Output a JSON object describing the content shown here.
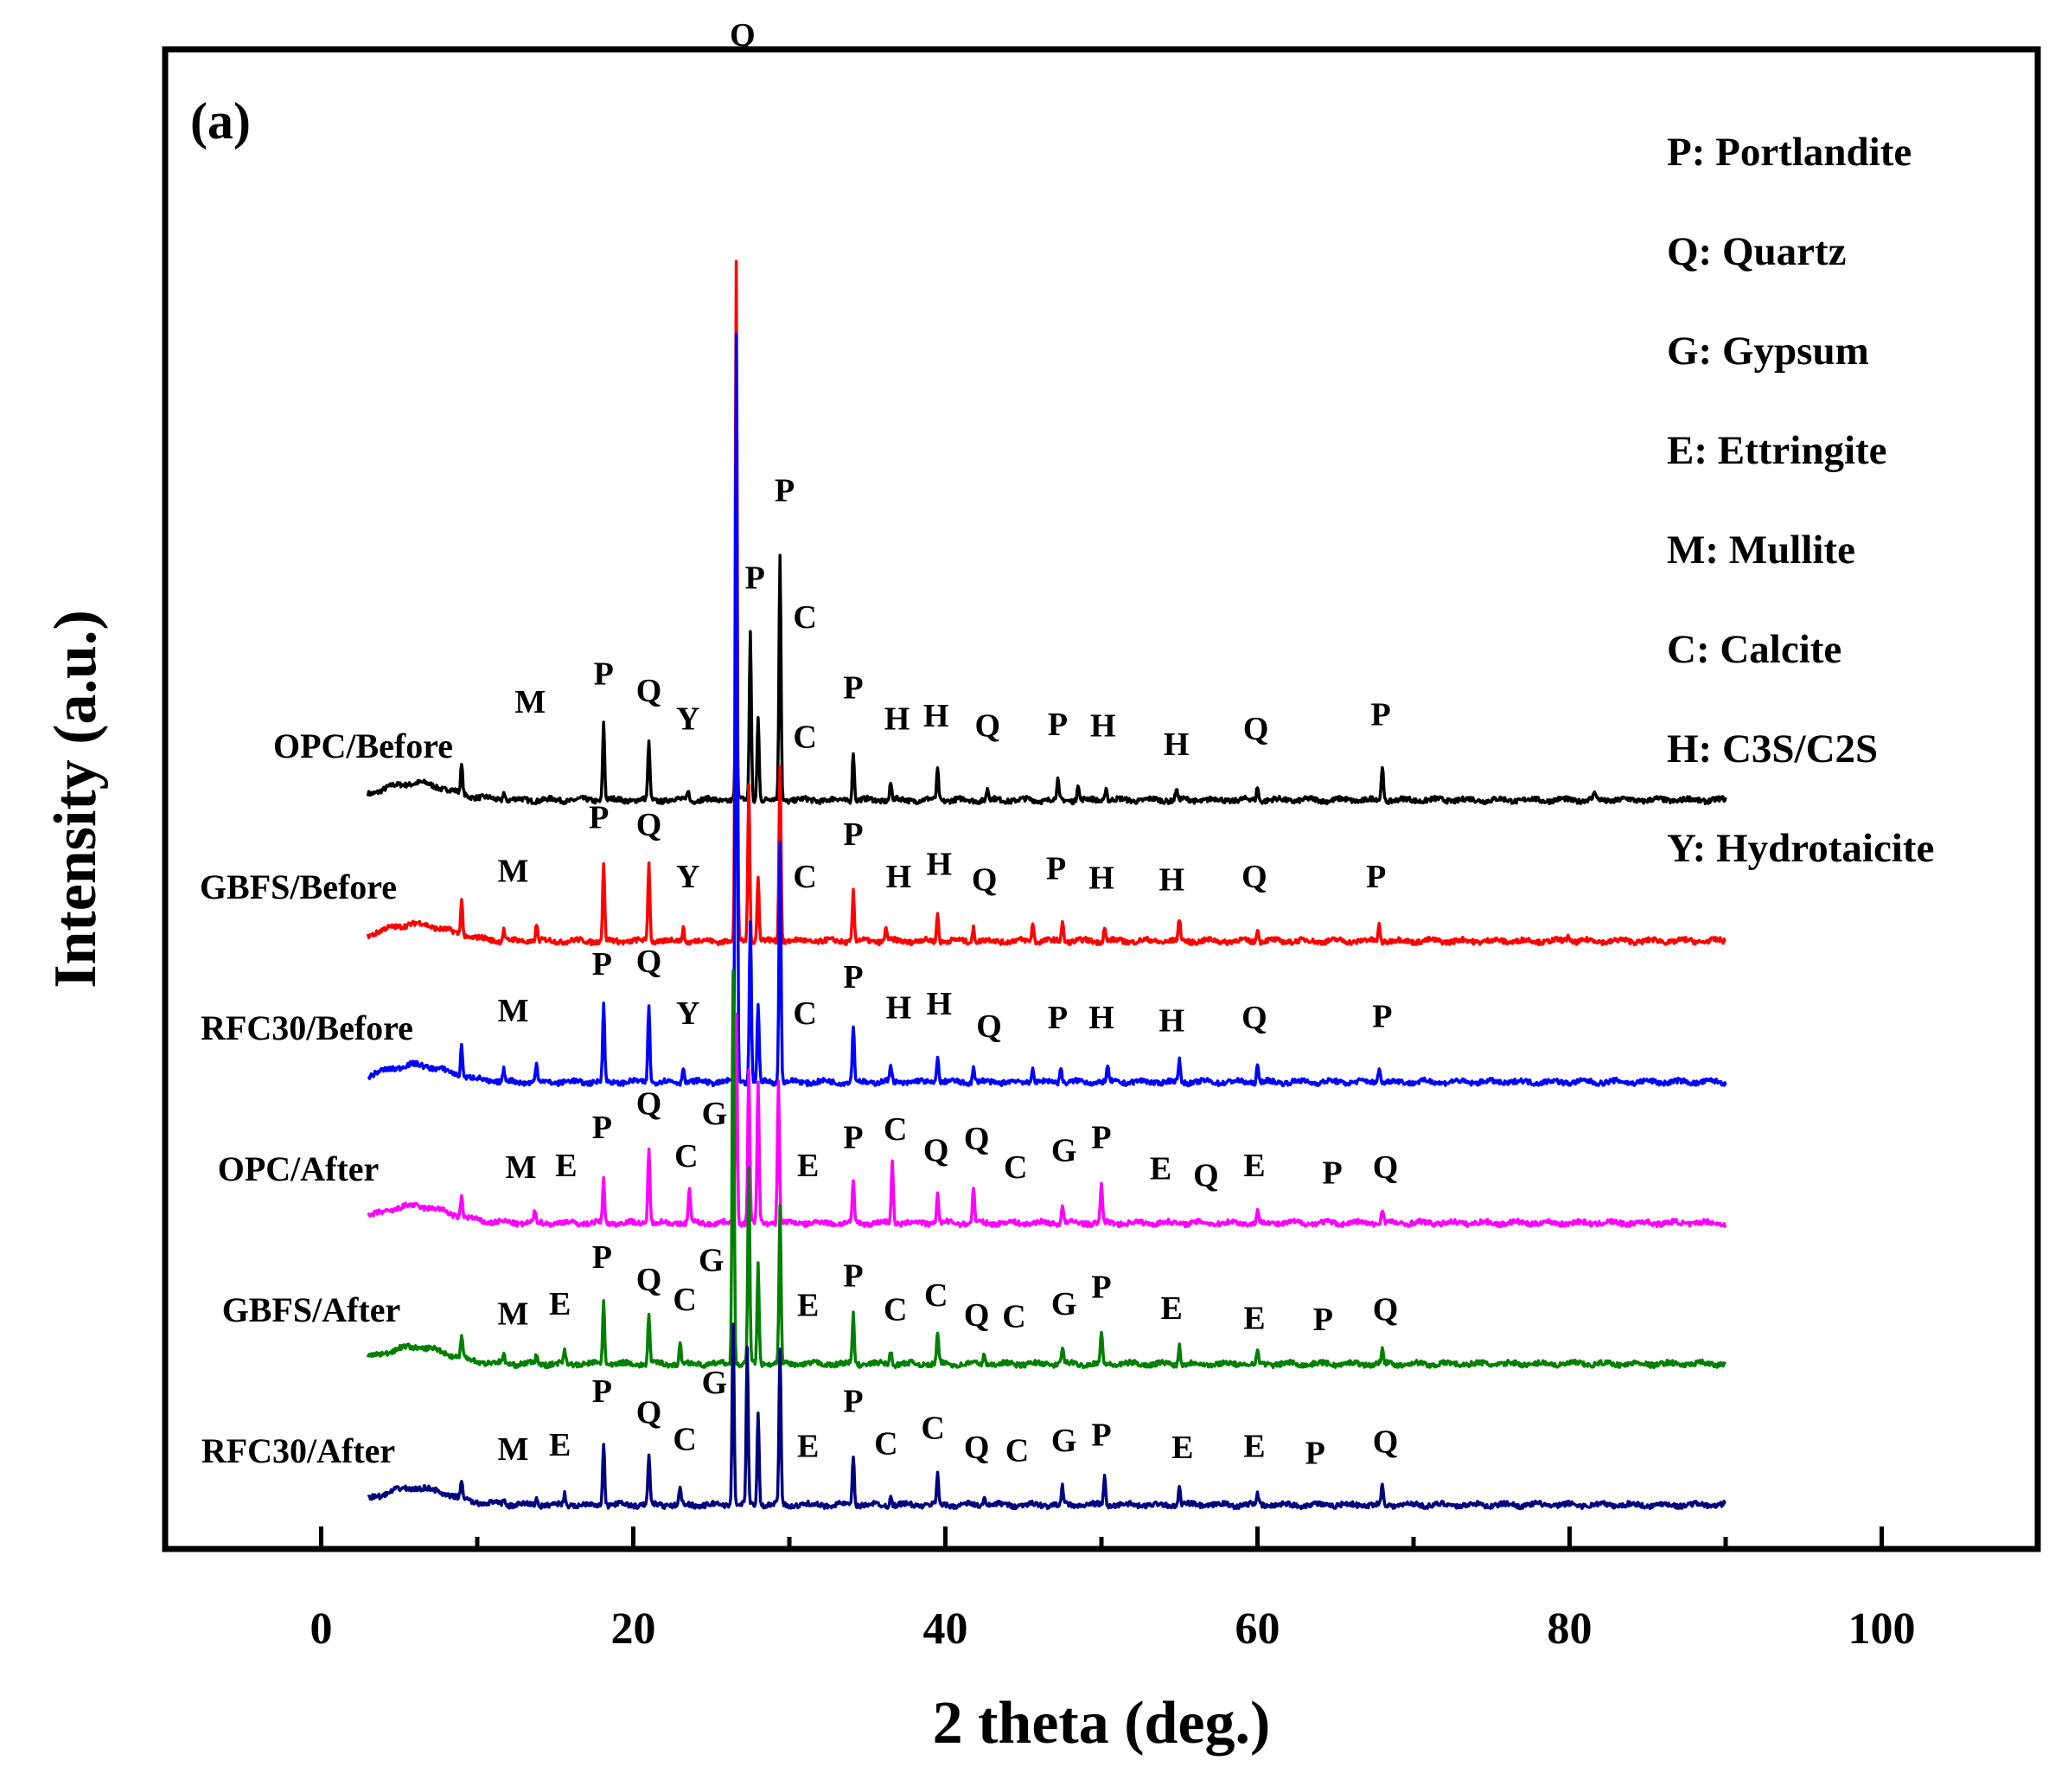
{
  "chart_data": {
    "type": "line",
    "panel_label": "(a)",
    "xlabel": "2 theta (deg.)",
    "ylabel": "Intensity (a.u.)",
    "xlim": [
      -10,
      110
    ],
    "x_ticks": [
      "0",
      "20",
      "40",
      "60",
      "80",
      "100"
    ],
    "y_ticks": [],
    "grid": false,
    "legend_position": "top-right",
    "legend": [
      "P: Portlandite",
      "Q: Quartz",
      "G: Gypsum",
      "E: Ettringite",
      "M: Mullite",
      "C: Calcite",
      "H: C3S/C2S",
      "Y: Hydrotaicite"
    ],
    "series": [
      {
        "name": "OPC/Before",
        "color": "#000000",
        "offset": 5.0,
        "peaks": [
          [
            9,
            0.2
          ],
          [
            11.7,
            0.06
          ],
          [
            18.1,
            0.55
          ],
          [
            21,
            0.4
          ],
          [
            23.5,
            0.08
          ],
          [
            26.6,
            0.9
          ],
          [
            27.5,
            1.2
          ],
          [
            28,
            0.6
          ],
          [
            29.4,
            1.75
          ],
          [
            34.1,
            0.35
          ],
          [
            36.5,
            0.12
          ],
          [
            39.5,
            0.22
          ],
          [
            42.7,
            0.08
          ],
          [
            47.2,
            0.14
          ],
          [
            48.5,
            0.12
          ],
          [
            50.3,
            0.1
          ],
          [
            54.8,
            0.08
          ],
          [
            60,
            0.1
          ],
          [
            68,
            0.25
          ],
          [
            81.6,
            0.06
          ]
        ],
        "labels": [
          [
            "M",
            13.4,
            0.62
          ],
          [
            "P",
            18.1,
            0.82
          ],
          [
            "Q",
            21.0,
            0.7
          ],
          [
            "Y",
            23.5,
            0.5
          ],
          [
            "Q",
            27.0,
            5.35
          ],
          [
            "P",
            29.7,
            2.12
          ],
          [
            "P",
            27.8,
            1.5
          ],
          [
            "C",
            31.0,
            1.22
          ],
          [
            "C",
            31.0,
            0.37
          ],
          [
            "P",
            34.1,
            0.72
          ],
          [
            "H",
            36.9,
            0.5
          ],
          [
            "H",
            39.4,
            0.52
          ],
          [
            "Q",
            42.7,
            0.45
          ],
          [
            "P",
            47.2,
            0.46
          ],
          [
            "H",
            50.1,
            0.45
          ],
          [
            "H",
            54.8,
            0.32
          ],
          [
            "Q",
            59.9,
            0.43
          ],
          [
            "P",
            67.9,
            0.53
          ]
        ]
      },
      {
        "name": "GBFS/Before",
        "color": "#ff0000",
        "offset": 4.0,
        "peaks": [
          [
            9,
            0.25
          ],
          [
            11.7,
            0.08
          ],
          [
            13.8,
            0.12
          ],
          [
            18.1,
            0.55
          ],
          [
            21,
            0.55
          ],
          [
            23.2,
            0.1
          ],
          [
            26.6,
            4.8
          ],
          [
            27.4,
            1.1
          ],
          [
            28,
            0.45
          ],
          [
            29.4,
            1.25
          ],
          [
            34.1,
            0.35
          ],
          [
            36.2,
            0.1
          ],
          [
            39.5,
            0.2
          ],
          [
            41.8,
            0.1
          ],
          [
            45.6,
            0.14
          ],
          [
            47.5,
            0.14
          ],
          [
            50.2,
            0.1
          ],
          [
            55,
            0.15
          ],
          [
            60,
            0.1
          ],
          [
            67.8,
            0.12
          ],
          [
            79.9,
            0.05
          ]
        ],
        "labels": [
          [
            "M",
            12.3,
            0.42
          ],
          [
            "P",
            17.8,
            0.8
          ],
          [
            "Q",
            21.0,
            0.75
          ],
          [
            "Y",
            23.5,
            0.38
          ],
          [
            "C",
            31.0,
            0.38
          ],
          [
            "P",
            34.1,
            0.68
          ],
          [
            "H",
            37.0,
            0.38
          ],
          [
            "H",
            39.6,
            0.47
          ],
          [
            "Q",
            42.5,
            0.36
          ],
          [
            "P",
            47.1,
            0.44
          ],
          [
            "H",
            50.0,
            0.37
          ],
          [
            "H",
            54.5,
            0.36
          ],
          [
            "Q",
            59.8,
            0.38
          ],
          [
            "P",
            67.6,
            0.38
          ]
        ]
      },
      {
        "name": "RFC30/Before",
        "color": "#0000ff",
        "offset": 3.0,
        "peaks": [
          [
            9,
            0.22
          ],
          [
            11.7,
            0.08
          ],
          [
            13.8,
            0.12
          ],
          [
            18.1,
            0.55
          ],
          [
            21,
            0.55
          ],
          [
            23.2,
            0.12
          ],
          [
            26.6,
            5.3
          ],
          [
            27.5,
            1.15
          ],
          [
            28,
            0.55
          ],
          [
            29.4,
            1.7
          ],
          [
            34.1,
            0.4
          ],
          [
            36.5,
            0.12
          ],
          [
            39.5,
            0.2
          ],
          [
            41.8,
            0.1
          ],
          [
            45.6,
            0.12
          ],
          [
            47.4,
            0.12
          ],
          [
            50.4,
            0.1
          ],
          [
            55,
            0.15
          ],
          [
            60,
            0.12
          ],
          [
            67.8,
            0.12
          ]
        ],
        "labels": [
          [
            "M",
            12.3,
            0.43
          ],
          [
            "P",
            18.0,
            0.76
          ],
          [
            "Q",
            21.0,
            0.78
          ],
          [
            "Y",
            23.5,
            0.41
          ],
          [
            "C",
            31.0,
            0.41
          ],
          [
            "P",
            34.1,
            0.67
          ],
          [
            "H",
            37.0,
            0.45
          ],
          [
            "H",
            39.6,
            0.48
          ],
          [
            "Q",
            42.8,
            0.32
          ],
          [
            "P",
            47.2,
            0.38
          ],
          [
            "H",
            50.0,
            0.38
          ],
          [
            "H",
            54.5,
            0.36
          ],
          [
            "Q",
            59.8,
            0.38
          ],
          [
            "P",
            68.0,
            0.39
          ]
        ]
      },
      {
        "name": "OPC/After",
        "color": "#ff00ff",
        "offset": 2.0,
        "peaks": [
          [
            9,
            0.15
          ],
          [
            13.7,
            0.08
          ],
          [
            18.1,
            0.3
          ],
          [
            21,
            0.55
          ],
          [
            23.6,
            0.25
          ],
          [
            26.6,
            1.5
          ],
          [
            27.4,
            1.1
          ],
          [
            28,
            1.0
          ],
          [
            29.3,
            1.0
          ],
          [
            34.1,
            0.28
          ],
          [
            36.6,
            0.45
          ],
          [
            39.5,
            0.22
          ],
          [
            41.8,
            0.25
          ],
          [
            47.5,
            0.14
          ],
          [
            50,
            0.28
          ],
          [
            60,
            0.08
          ],
          [
            68,
            0.1
          ]
        ],
        "labels": [
          [
            "M",
            12.8,
            0.32
          ],
          [
            "E",
            15.7,
            0.33
          ],
          [
            "P",
            18.0,
            0.6
          ],
          [
            "Q",
            21.0,
            0.77
          ],
          [
            "C",
            23.4,
            0.4
          ],
          [
            "G",
            25.2,
            0.7
          ],
          [
            "E",
            31.2,
            0.33
          ],
          [
            "P",
            34.1,
            0.53
          ],
          [
            "C",
            36.8,
            0.59
          ],
          [
            "Q",
            39.4,
            0.44
          ],
          [
            "Q",
            42.0,
            0.52
          ],
          [
            "C",
            44.5,
            0.32
          ],
          [
            "G",
            47.6,
            0.44
          ],
          [
            "P",
            50.0,
            0.53
          ],
          [
            "E",
            53.8,
            0.31
          ],
          [
            "Q",
            56.7,
            0.26
          ],
          [
            "E",
            59.8,
            0.33
          ],
          [
            "P",
            64.8,
            0.28
          ],
          [
            "Q",
            68.2,
            0.32
          ]
        ]
      },
      {
        "name": "GBFS/After",
        "color": "#008000",
        "offset": 1.0,
        "peaks": [
          [
            9,
            0.15
          ],
          [
            11.7,
            0.06
          ],
          [
            13.8,
            0.06
          ],
          [
            15.6,
            0.1
          ],
          [
            18.1,
            0.45
          ],
          [
            21,
            0.35
          ],
          [
            23,
            0.14
          ],
          [
            26.4,
            2.8
          ],
          [
            27.4,
            1.4
          ],
          [
            28,
            0.7
          ],
          [
            29.4,
            1.1
          ],
          [
            34.1,
            0.35
          ],
          [
            36.5,
            0.1
          ],
          [
            39.5,
            0.22
          ],
          [
            42.5,
            0.08
          ],
          [
            47.5,
            0.12
          ],
          [
            50,
            0.22
          ],
          [
            55,
            0.14
          ],
          [
            60,
            0.08
          ],
          [
            68,
            0.12
          ]
        ],
        "labels": [
          [
            "M",
            12.3,
            0.28
          ],
          [
            "E",
            15.3,
            0.35
          ],
          [
            "P",
            18.0,
            0.68
          ],
          [
            "Q",
            21.0,
            0.52
          ],
          [
            "C",
            23.3,
            0.38
          ],
          [
            "G",
            25.0,
            0.66
          ],
          [
            "E",
            31.2,
            0.34
          ],
          [
            "P",
            34.1,
            0.55
          ],
          [
            "C",
            36.8,
            0.31
          ],
          [
            "C",
            39.4,
            0.41
          ],
          [
            "Q",
            42.0,
            0.27
          ],
          [
            "C",
            44.4,
            0.26
          ],
          [
            "G",
            47.6,
            0.35
          ],
          [
            "P",
            50.0,
            0.47
          ],
          [
            "E",
            54.5,
            0.32
          ],
          [
            "E",
            59.8,
            0.25
          ],
          [
            "P",
            64.2,
            0.24
          ],
          [
            "Q",
            68.2,
            0.31
          ]
        ]
      },
      {
        "name": "RFC30/After",
        "color": "#000080",
        "offset": 0.0,
        "peaks": [
          [
            9,
            0.12
          ],
          [
            11.7,
            0.05
          ],
          [
            13.8,
            0.06
          ],
          [
            15.6,
            0.08
          ],
          [
            18.1,
            0.45
          ],
          [
            21,
            0.35
          ],
          [
            23,
            0.12
          ],
          [
            26.4,
            1.3
          ],
          [
            27.3,
            1.1
          ],
          [
            28,
            0.65
          ],
          [
            29.4,
            1.1
          ],
          [
            34.1,
            0.35
          ],
          [
            36.5,
            0.08
          ],
          [
            39.5,
            0.22
          ],
          [
            42.5,
            0.06
          ],
          [
            47.5,
            0.12
          ],
          [
            50.2,
            0.2
          ],
          [
            55,
            0.12
          ],
          [
            60,
            0.08
          ],
          [
            68,
            0.14
          ]
        ],
        "labels": [
          [
            "M",
            12.3,
            0.32
          ],
          [
            "E",
            15.3,
            0.35
          ],
          [
            "P",
            18.0,
            0.73
          ],
          [
            "Q",
            21.0,
            0.58
          ],
          [
            "C",
            23.3,
            0.39
          ],
          [
            "G",
            25.2,
            0.79
          ],
          [
            "E",
            31.2,
            0.34
          ],
          [
            "P",
            34.1,
            0.66
          ],
          [
            "C",
            36.2,
            0.36
          ],
          [
            "C",
            39.2,
            0.47
          ],
          [
            "Q",
            42.0,
            0.33
          ],
          [
            "C",
            44.6,
            0.31
          ],
          [
            "G",
            47.6,
            0.38
          ],
          [
            "P",
            50.0,
            0.42
          ],
          [
            "E",
            55.2,
            0.33
          ],
          [
            "E",
            59.8,
            0.34
          ],
          [
            "P",
            63.7,
            0.29
          ],
          [
            "Q",
            68.2,
            0.37
          ]
        ]
      }
    ]
  }
}
